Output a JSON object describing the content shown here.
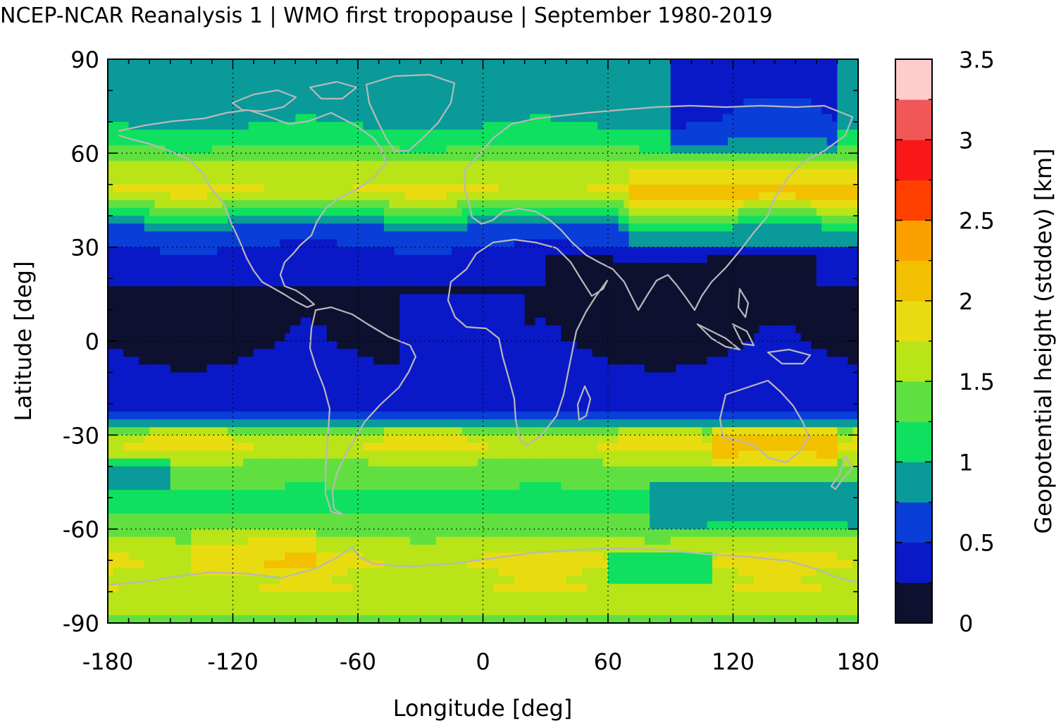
{
  "chart_data": {
    "type": "heatmap",
    "title": "NCEP-NCAR Reanalysis 1 | WMO first tropopause | September 1980-2019",
    "xlabel": "Longitude [deg]",
    "ylabel": "Latitude [deg]",
    "colorbar_label": "Geopotential height (stddev) [km]",
    "xlim": [
      -180,
      180
    ],
    "ylim": [
      -90,
      90
    ],
    "xticks": [
      -180,
      -120,
      -60,
      0,
      60,
      120,
      180
    ],
    "yticks": [
      90,
      60,
      30,
      0,
      -30,
      -60,
      -90
    ],
    "colorbar_range": [
      0,
      3.5
    ],
    "colorbar_ticks": [
      "0",
      "0.5",
      "1",
      "1.5",
      "2",
      "2.5",
      "3",
      "3.5"
    ],
    "colorbar_step": 0.25,
    "colorbar_colors": [
      "#0e1030",
      "#0a19c8",
      "#0a3ed8",
      "#0a9a9a",
      "#10e060",
      "#60e040",
      "#b8e418",
      "#e8dc10",
      "#f2c000",
      "#fca000",
      "#ff4000",
      "#f81818",
      "#f05858",
      "#ffcccc"
    ],
    "grid": true,
    "latitudes": [
      90,
      80,
      70,
      62,
      55,
      47,
      42,
      36,
      30,
      25,
      20,
      15,
      10,
      5,
      0,
      -5,
      -10,
      -15,
      -20,
      -25,
      -28,
      -32,
      -36,
      -40,
      -45,
      -50,
      -55,
      -60,
      -65,
      -70,
      -75,
      -80,
      -85,
      -90
    ],
    "lat_profile_stddev_km": [
      0.9,
      0.9,
      0.95,
      1.25,
      1.6,
      1.8,
      1.3,
      0.7,
      0.5,
      0.35,
      0.3,
      0.2,
      0.2,
      0.2,
      0.2,
      0.25,
      0.3,
      0.35,
      0.4,
      0.6,
      1.4,
      1.8,
      1.7,
      1.4,
      1.3,
      1.2,
      1.25,
      1.4,
      1.6,
      1.8,
      1.7,
      1.75,
      1.6,
      1.4
    ]
  }
}
